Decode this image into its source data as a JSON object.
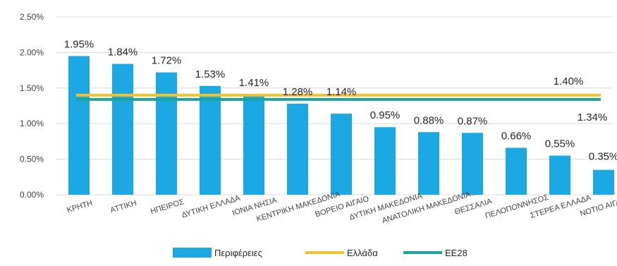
{
  "chart_data": {
    "type": "bar",
    "title": "",
    "xlabel": "",
    "ylabel": "",
    "ylim": [
      0,
      0.025
    ],
    "yticks": [
      "0.00%",
      "0.50%",
      "1.00%",
      "1.50%",
      "2.00%",
      "2.50%"
    ],
    "grid": true,
    "legend_position": "bottom",
    "categories": [
      "ΚΡΗΤΗ",
      "ΑΤΤΙΚΗ",
      "ΗΠΕΙΡΟΣ",
      "ΔΥΤΙΚΗ ΕΛΛΑΔΑ",
      "ΙΟΝΙΑ ΝΗΣΙΑ",
      "ΚΕΝΤΡΙΚΗ ΜΑΚΕΔΟΝΙΑ",
      "ΒΟΡΕΙΟ ΑΙΓΑΙΟ",
      "ΔΥΤΙΚΗ ΜΑΚΕΔΟΝΙΑ",
      "ΑΝΑΤΟΛΙΚΗ ΜΑΚΕΔΟΝΙΑ...",
      "ΘΕΣΣΑΛΙΑ",
      "ΠΕΛΟΠΟΝΝΗΣΟΣ",
      "ΣΤΕΡΕΑ ΕΛΛΑΔΑ",
      "ΝΟΤΙΟ ΑΙΓΑΙΟ"
    ],
    "series": [
      {
        "name": "Περιφέρειες",
        "kind": "bar",
        "color": "#1CA8E3",
        "values": [
          0.0195,
          0.0184,
          0.0172,
          0.0153,
          0.0141,
          0.0128,
          0.0114,
          0.0095,
          0.0088,
          0.0087,
          0.0066,
          0.0055,
          0.0035
        ],
        "labels": [
          "1.95%",
          "1.84%",
          "1.72%",
          "1.53%",
          "1.41%",
          "1.28%",
          "1.14%",
          "0.95%",
          "0.88%",
          "0.87%",
          "0.66%",
          "0.55%",
          "0.35%"
        ]
      },
      {
        "name": "Ελλάδα",
        "kind": "line",
        "color": "#F2C12E",
        "values": [
          0.014,
          0.014,
          0.014,
          0.014,
          0.014,
          0.014,
          0.014,
          0.014,
          0.014,
          0.014,
          0.014,
          0.014,
          0.014
        ],
        "end_label": "1.40%"
      },
      {
        "name": "ΕΕ28",
        "kind": "line",
        "color": "#1BA39C",
        "values": [
          0.0134,
          0.0134,
          0.0134,
          0.0134,
          0.0134,
          0.0134,
          0.0134,
          0.0134,
          0.0134,
          0.0134,
          0.0134,
          0.0134,
          0.0134
        ],
        "end_label": "1.34%"
      }
    ]
  }
}
